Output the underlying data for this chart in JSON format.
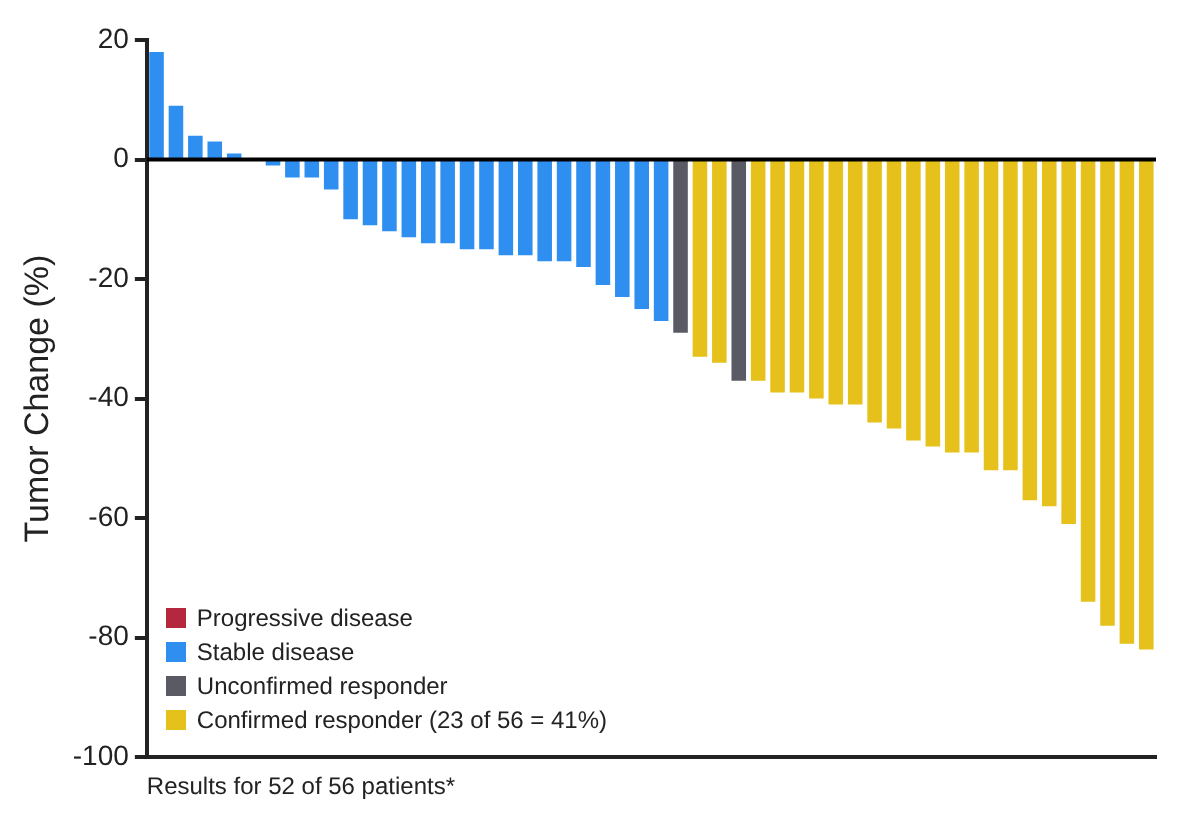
{
  "chart_data": {
    "type": "bar",
    "stacked": true,
    "xlabel": "Results for 52 of 56 patients*",
    "ylabel": "Tumor Change (%)",
    "categories": [
      null,
      null,
      null,
      null,
      null,
      null,
      null,
      null,
      null,
      null,
      null,
      null,
      null,
      null,
      null,
      null,
      null,
      null,
      null,
      null,
      null,
      null,
      null,
      null,
      null,
      null,
      null,
      null,
      null,
      null,
      null,
      null,
      null,
      null,
      null,
      null,
      null,
      null,
      null,
      null,
      null,
      null,
      null,
      null,
      null,
      null,
      null,
      null,
      null,
      null,
      null,
      null
    ],
    "series": [
      {
        "name": "Progressive disease",
        "color": "#b5273d",
        "values": [
          null,
          null,
          null,
          null,
          null,
          null,
          null,
          null,
          null,
          null,
          null,
          null,
          null,
          null,
          null,
          null,
          null,
          null,
          null,
          null,
          null,
          null,
          null,
          null,
          null,
          null,
          null,
          null,
          null,
          null,
          null,
          null,
          null,
          null,
          null,
          null,
          null,
          null,
          null,
          null,
          null,
          null,
          null,
          null,
          null,
          null,
          null,
          null,
          null,
          null,
          null,
          null
        ]
      },
      {
        "name": "Stable disease",
        "color": "#2e8ff0",
        "values": [
          18,
          9,
          4,
          3,
          1,
          0,
          -1,
          -3,
          -3,
          -5,
          -10,
          -11,
          -12,
          -13,
          -14,
          -14,
          -15,
          -15,
          -16,
          -16,
          -17,
          -17,
          -18,
          -21,
          -23,
          -25,
          -27,
          null,
          null,
          null,
          null,
          null,
          null,
          null,
          null,
          null,
          null,
          null,
          null,
          null,
          null,
          null,
          null,
          null,
          null,
          null,
          null,
          null,
          null,
          null,
          null,
          null
        ]
      },
      {
        "name": "Unconfirmed responder",
        "color": "#5a5a64",
        "values": [
          null,
          null,
          null,
          null,
          null,
          null,
          null,
          null,
          null,
          null,
          null,
          null,
          null,
          null,
          null,
          null,
          null,
          null,
          null,
          null,
          null,
          null,
          null,
          null,
          null,
          null,
          null,
          -29,
          null,
          null,
          -37,
          null,
          null,
          null,
          null,
          null,
          null,
          null,
          null,
          null,
          null,
          null,
          null,
          null,
          null,
          null,
          null,
          null,
          null,
          null,
          null,
          null
        ]
      },
      {
        "name": "Confirmed responder (23 of 56 = 41%)",
        "color": "#e6c11b",
        "values": [
          null,
          null,
          null,
          null,
          null,
          null,
          null,
          null,
          null,
          null,
          null,
          null,
          null,
          null,
          null,
          null,
          null,
          null,
          null,
          null,
          null,
          null,
          null,
          null,
          null,
          null,
          null,
          null,
          -33,
          -34,
          null,
          -37,
          -39,
          -39,
          -40,
          -41,
          -41,
          -44,
          -45,
          -47,
          -48,
          -49,
          -49,
          -52,
          -52,
          -57,
          -58,
          -61,
          -74,
          -78,
          -81,
          -82
        ]
      }
    ],
    "ylim": [
      -100,
      20
    ],
    "yticks": [
      -100,
      -80,
      -60,
      -40,
      -20,
      0,
      20
    ],
    "grid": false,
    "legend": "bottom left",
    "ref_lines": [
      {
        "axis": "y",
        "value": 0,
        "color": "#000000"
      }
    ],
    "tick_labels": "y"
  }
}
